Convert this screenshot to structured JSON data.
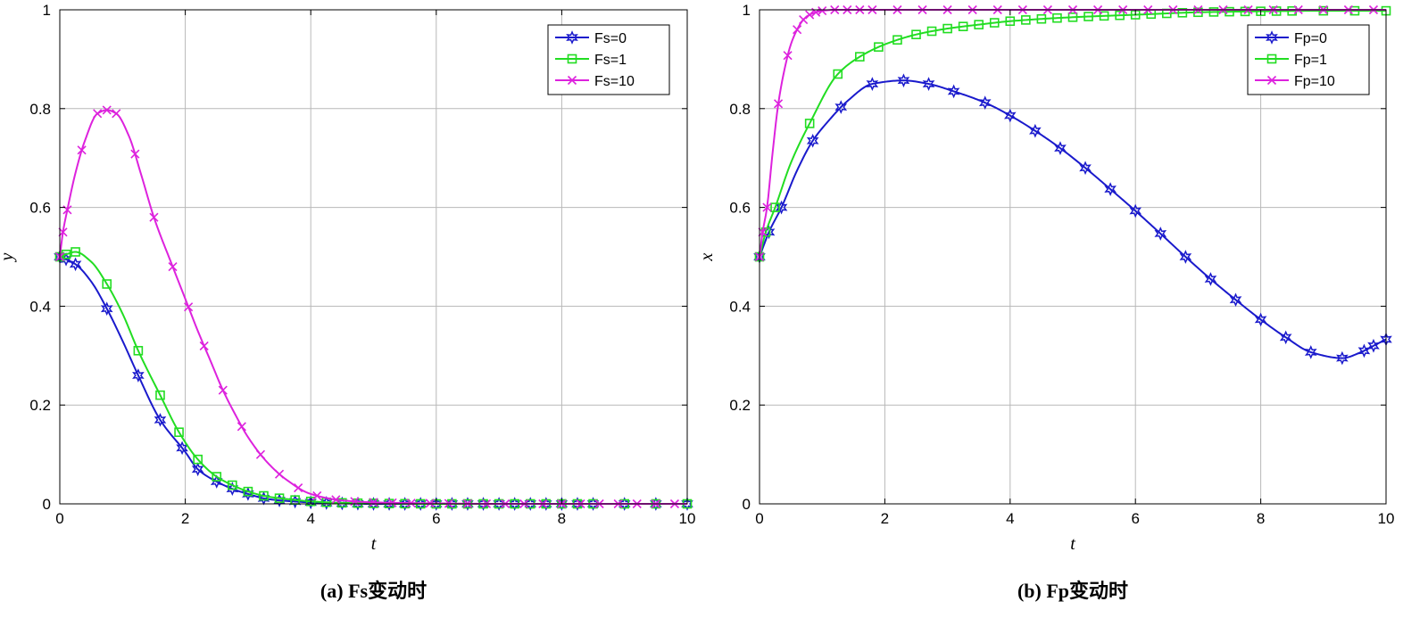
{
  "chart_data": [
    {
      "type": "line",
      "caption": "(a) Fs变动时",
      "xlabel": "t",
      "ylabel": "y",
      "xlim": [
        0,
        10
      ],
      "ylim": [
        0,
        1
      ],
      "xticks": [
        0,
        2,
        4,
        6,
        8,
        10
      ],
      "yticks": [
        0,
        0.2,
        0.4,
        0.6,
        0.8,
        1
      ],
      "grid": true,
      "legend_position": "top-right",
      "series": [
        {
          "name": "Fs=0",
          "color": "#1a1acc",
          "marker": "star",
          "x": [
            0,
            0.1,
            0.25,
            0.5,
            0.75,
            1.0,
            1.25,
            1.6,
            2.0,
            2.2,
            2.5,
            2.8,
            3.0,
            3.3,
            3.6,
            4.0,
            4.5,
            5.0,
            6.0,
            7.0,
            8.0,
            9.0,
            10.0
          ],
          "y": [
            0.5,
            0.495,
            0.485,
            0.45,
            0.395,
            0.33,
            0.26,
            0.17,
            0.105,
            0.07,
            0.045,
            0.028,
            0.02,
            0.01,
            0.006,
            0.003,
            0.001,
            0.0,
            0.0,
            0.0,
            0.0,
            0.0,
            0.0
          ],
          "markers_x": [
            0,
            0.1,
            0.25,
            0.75,
            1.25,
            1.6,
            1.95,
            2.2,
            2.5,
            2.75,
            3.0,
            3.25,
            3.5,
            3.75,
            4.0,
            4.25,
            4.5,
            4.75,
            5.0,
            5.25,
            5.5,
            5.75,
            6.0,
            6.25,
            6.5,
            6.75,
            7.0,
            7.25,
            7.5,
            7.75,
            8.0,
            8.25,
            8.5,
            9.0,
            9.5,
            10.0
          ]
        },
        {
          "name": "Fs=1",
          "color": "#22dd22",
          "marker": "square",
          "x": [
            0,
            0.1,
            0.25,
            0.5,
            0.75,
            1.0,
            1.25,
            1.6,
            1.9,
            2.2,
            2.5,
            2.8,
            3.0,
            3.3,
            3.6,
            4.0,
            4.5,
            5.0,
            6.0,
            7.0,
            8.0,
            9.0,
            10.0
          ],
          "y": [
            0.5,
            0.505,
            0.51,
            0.49,
            0.445,
            0.385,
            0.31,
            0.22,
            0.145,
            0.09,
            0.055,
            0.035,
            0.025,
            0.015,
            0.01,
            0.005,
            0.002,
            0.001,
            0.0,
            0.0,
            0.0,
            0.0,
            0.0
          ],
          "markers_x": [
            0,
            0.1,
            0.25,
            0.75,
            1.25,
            1.6,
            1.9,
            2.2,
            2.5,
            2.75,
            3.0,
            3.25,
            3.5,
            3.75,
            4.0,
            4.25,
            4.5,
            4.75,
            5.0,
            5.25,
            5.5,
            5.75,
            6.0,
            6.25,
            6.5,
            6.75,
            7.0,
            7.25,
            7.5,
            7.75,
            8.0,
            8.25,
            8.5,
            9.0,
            9.5,
            10.0
          ]
        },
        {
          "name": "Fs=10",
          "color": "#dd22dd",
          "marker": "x",
          "x": [
            0,
            0.05,
            0.12,
            0.25,
            0.4,
            0.6,
            0.75,
            0.9,
            1.1,
            1.3,
            1.5,
            1.8,
            2.0,
            2.2,
            2.4,
            2.6,
            2.8,
            3.0,
            3.3,
            3.6,
            4.0,
            4.5,
            5.0,
            6.0,
            7.0,
            8.0,
            9.0,
            10.0
          ],
          "y": [
            0.5,
            0.55,
            0.595,
            0.67,
            0.735,
            0.79,
            0.797,
            0.79,
            0.745,
            0.665,
            0.58,
            0.48,
            0.415,
            0.35,
            0.29,
            0.23,
            0.18,
            0.135,
            0.085,
            0.05,
            0.02,
            0.007,
            0.003,
            0.001,
            0.0,
            0.0,
            0.0,
            0.0
          ],
          "markers_x": [
            0,
            0.05,
            0.12,
            0.35,
            0.6,
            0.75,
            0.9,
            1.2,
            1.5,
            1.8,
            2.05,
            2.3,
            2.6,
            2.9,
            3.2,
            3.5,
            3.8,
            4.1,
            4.4,
            4.7,
            5.0,
            5.3,
            5.6,
            5.9,
            6.2,
            6.5,
            6.8,
            7.1,
            7.4,
            7.7,
            8.0,
            8.3,
            8.6,
            8.9,
            9.2,
            9.5,
            9.8
          ]
        }
      ]
    },
    {
      "type": "line",
      "caption": "(b) Fp变动时",
      "xlabel": "t",
      "ylabel": "x",
      "xlim": [
        0,
        10
      ],
      "ylim": [
        0,
        1
      ],
      "xticks": [
        0,
        2,
        4,
        6,
        8,
        10
      ],
      "yticks": [
        0,
        0.2,
        0.4,
        0.6,
        0.8,
        1
      ],
      "grid": true,
      "legend_position": "top-right",
      "series": [
        {
          "name": "Fp=0",
          "color": "#1a1acc",
          "marker": "star",
          "x": [
            0,
            0.15,
            0.35,
            0.6,
            0.85,
            1.1,
            1.4,
            1.8,
            2.3,
            2.7,
            3.1,
            3.6,
            4.0,
            4.4,
            4.8,
            5.2,
            5.6,
            6.0,
            6.4,
            6.8,
            7.2,
            7.6,
            8.0,
            8.4,
            8.8,
            9.3,
            9.6,
            9.8,
            10.0
          ],
          "y": [
            0.5,
            0.55,
            0.6,
            0.675,
            0.735,
            0.775,
            0.815,
            0.85,
            0.857,
            0.85,
            0.835,
            0.812,
            0.786,
            0.755,
            0.72,
            0.68,
            0.637,
            0.593,
            0.547,
            0.5,
            0.455,
            0.413,
            0.373,
            0.337,
            0.307,
            0.295,
            0.307,
            0.32,
            0.333
          ],
          "markers_x": [
            0,
            0.15,
            0.35,
            0.85,
            1.3,
            1.8,
            2.3,
            2.7,
            3.1,
            3.6,
            4.0,
            4.4,
            4.8,
            5.2,
            5.6,
            6.0,
            6.4,
            6.8,
            7.2,
            7.6,
            8.0,
            8.4,
            8.8,
            9.3,
            9.65,
            9.8,
            10.0
          ]
        },
        {
          "name": "Fp=1",
          "color": "#22dd22",
          "marker": "square",
          "x": [
            0,
            0.1,
            0.25,
            0.5,
            0.8,
            1.25,
            1.6,
            2.0,
            2.5,
            3.0,
            3.5,
            4.0,
            5.0,
            6.0,
            7.0,
            8.0,
            9.0,
            10.0
          ],
          "y": [
            0.5,
            0.55,
            0.6,
            0.69,
            0.77,
            0.87,
            0.905,
            0.93,
            0.95,
            0.962,
            0.97,
            0.977,
            0.985,
            0.99,
            0.995,
            0.997,
            0.998,
            0.998
          ],
          "markers_x": [
            0,
            0.1,
            0.25,
            0.8,
            1.25,
            1.6,
            1.9,
            2.2,
            2.5,
            2.75,
            3.0,
            3.25,
            3.5,
            3.75,
            4.0,
            4.25,
            4.5,
            4.75,
            5.0,
            5.25,
            5.5,
            5.75,
            6.0,
            6.25,
            6.5,
            6.75,
            7.0,
            7.25,
            7.5,
            7.75,
            8.0,
            8.25,
            8.5,
            9.0,
            9.5,
            10.0
          ]
        },
        {
          "name": "Fp=10",
          "color": "#dd22dd",
          "marker": "x",
          "x": [
            0,
            0.05,
            0.12,
            0.2,
            0.3,
            0.4,
            0.5,
            0.6,
            0.7,
            0.8,
            0.9,
            1.0,
            1.2,
            1.5,
            2.0,
            3.0,
            10.0
          ],
          "y": [
            0.5,
            0.55,
            0.6,
            0.7,
            0.81,
            0.88,
            0.93,
            0.96,
            0.98,
            0.99,
            0.995,
            0.998,
            1.0,
            1.0,
            1.0,
            1.0,
            1.0
          ],
          "markers_x": [
            0,
            0.05,
            0.12,
            0.3,
            0.45,
            0.6,
            0.7,
            0.8,
            0.9,
            1.0,
            1.2,
            1.4,
            1.6,
            1.8,
            2.2,
            2.6,
            3.0,
            3.4,
            3.8,
            4.2,
            4.6,
            5.0,
            5.4,
            5.8,
            6.2,
            6.6,
            7.0,
            7.4,
            7.8,
            8.2,
            8.6,
            9.0,
            9.4,
            9.8
          ]
        }
      ]
    }
  ]
}
